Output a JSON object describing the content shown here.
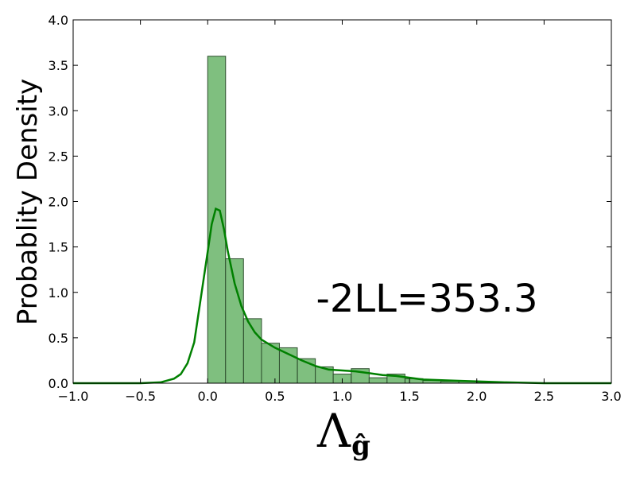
{
  "chart_data": {
    "type": "bar",
    "subtype": "histogram with density curve",
    "ylabel": "Probablity Density",
    "xlabel": "Λ",
    "xlabel_subscript": "ĝ",
    "annotation": "-2LL=353.3",
    "xlim": [
      -1.0,
      3.0
    ],
    "ylim": [
      0.0,
      4.0
    ],
    "xticks": [
      "−1.0",
      "−0.5",
      "0.0",
      "0.5",
      "1.0",
      "1.5",
      "2.0",
      "2.5",
      "3.0"
    ],
    "yticks": [
      "0.0",
      "0.5",
      "1.0",
      "1.5",
      "2.0",
      "2.5",
      "3.0",
      "3.5",
      "4.0"
    ],
    "bar_color": "#7fbf7f",
    "curve_color": "#008000",
    "bin_width": 0.133,
    "bins": [
      {
        "x0": 0.0,
        "value": 3.6
      },
      {
        "x0": 0.133,
        "value": 1.37
      },
      {
        "x0": 0.267,
        "value": 0.71
      },
      {
        "x0": 0.4,
        "value": 0.44
      },
      {
        "x0": 0.533,
        "value": 0.39
      },
      {
        "x0": 0.667,
        "value": 0.27
      },
      {
        "x0": 0.8,
        "value": 0.18
      },
      {
        "x0": 0.933,
        "value": 0.1
      },
      {
        "x0": 1.067,
        "value": 0.16
      },
      {
        "x0": 1.2,
        "value": 0.06
      },
      {
        "x0": 1.333,
        "value": 0.1
      },
      {
        "x0": 1.467,
        "value": 0.05
      },
      {
        "x0": 1.6,
        "value": 0.03
      },
      {
        "x0": 1.733,
        "value": 0.02
      },
      {
        "x0": 1.867,
        "value": 0.02
      },
      {
        "x0": 2.0,
        "value": 0.01
      }
    ],
    "density_curve": {
      "x": [
        -1.0,
        -0.5,
        -0.35,
        -0.25,
        -0.2,
        -0.15,
        -0.1,
        -0.05,
        0.0,
        0.03,
        0.06,
        0.09,
        0.12,
        0.15,
        0.2,
        0.25,
        0.3,
        0.35,
        0.4,
        0.5,
        0.6,
        0.7,
        0.8,
        0.9,
        1.0,
        1.1,
        1.2,
        1.3,
        1.4,
        1.5,
        1.6,
        1.8,
        2.0,
        2.2,
        2.5,
        3.0
      ],
      "y": [
        0.0,
        0.0,
        0.01,
        0.05,
        0.1,
        0.22,
        0.45,
        0.95,
        1.45,
        1.75,
        1.92,
        1.9,
        1.7,
        1.45,
        1.1,
        0.85,
        0.68,
        0.56,
        0.48,
        0.39,
        0.32,
        0.25,
        0.19,
        0.15,
        0.14,
        0.13,
        0.11,
        0.09,
        0.08,
        0.06,
        0.04,
        0.03,
        0.02,
        0.01,
        0.0,
        0.0
      ]
    }
  }
}
